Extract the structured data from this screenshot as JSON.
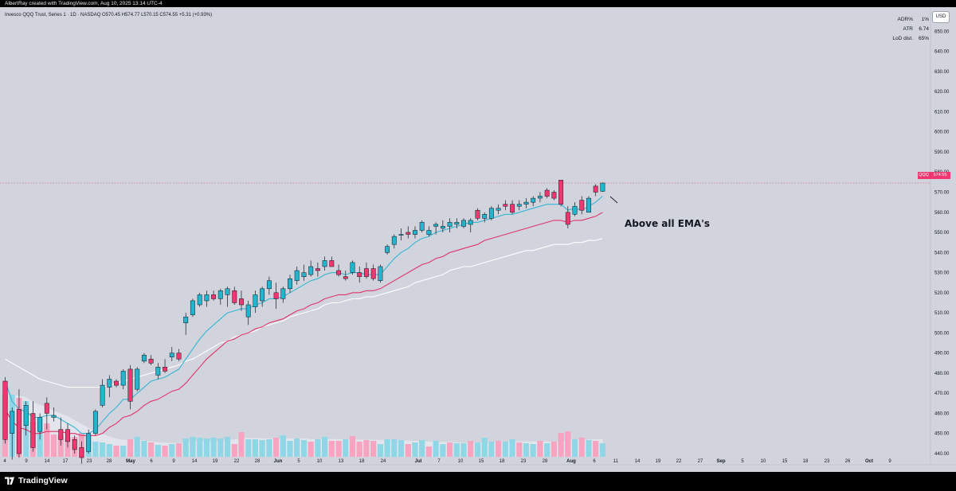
{
  "header": {
    "creator_text": "AlbertRay created with TradingView.com, Aug 10, 2025 13:14 UTC-4"
  },
  "legend": {
    "text": "Invesco QQQ Trust, Series 1 · 1D · NASDAQ  O570.45  H574.77  L570.15  C574.55  +5.31 (+0.93%)"
  },
  "stats": [
    {
      "label": "ADR%",
      "value": "1%"
    },
    {
      "label": "ATR",
      "value": "6.74"
    },
    {
      "label": "LoD dist.",
      "value": "65%"
    }
  ],
  "currency_button": "USD",
  "price_tag": {
    "symbol": "QQQ",
    "price": "574.55"
  },
  "annotation": "Above all EMA's",
  "footer": {
    "brand": "TradingView"
  },
  "colors": {
    "up": "#22b5cd",
    "down": "#f23670",
    "volume_up": "#8fd6e6",
    "volume_down": "#f6a4bf",
    "ema_fast": "#35b6d4",
    "ema_mid": "#e2336a",
    "ema_slow": "#ffffff",
    "background": "#d1d4dc"
  },
  "chart_data": {
    "type": "candlestick",
    "title": "Invesco QQQ Trust, Series 1",
    "interval": "1D",
    "exchange": "NASDAQ",
    "y_axis": {
      "ticks": [
        440,
        450,
        460,
        470,
        480,
        490,
        500,
        510,
        520,
        530,
        540,
        550,
        560,
        570,
        580,
        590,
        600,
        610,
        620,
        630,
        640,
        650
      ],
      "ylim": [
        436,
        654
      ]
    },
    "x_axis": {
      "ticks": [
        "4",
        "9",
        "14",
        "17",
        "23",
        "28",
        "May",
        "6",
        "9",
        "14",
        "19",
        "22",
        "28",
        "Jun",
        "5",
        "10",
        "13",
        "18",
        "24",
        "Jul",
        "7",
        "10",
        "15",
        "18",
        "23",
        "28",
        "Aug",
        "6",
        "11",
        "14",
        "19",
        "22",
        "27",
        "Sep",
        "5",
        "10",
        "15",
        "18",
        "23",
        "26",
        "Oct",
        "9"
      ]
    },
    "candles": [
      {
        "o": 476,
        "h": 478,
        "l": 445,
        "c": 447
      },
      {
        "o": 450,
        "h": 463,
        "l": 437,
        "c": 461
      },
      {
        "o": 462,
        "h": 472,
        "l": 438,
        "c": 440
      },
      {
        "o": 454,
        "h": 466,
        "l": 449,
        "c": 464
      },
      {
        "o": 460,
        "h": 466,
        "l": 441,
        "c": 443
      },
      {
        "o": 451,
        "h": 460,
        "l": 447,
        "c": 458
      },
      {
        "o": 465,
        "h": 468,
        "l": 452,
        "c": 460
      },
      {
        "o": 458,
        "h": 463,
        "l": 456,
        "c": 459
      },
      {
        "o": 452,
        "h": 458,
        "l": 444,
        "c": 447
      },
      {
        "o": 452,
        "h": 455,
        "l": 443,
        "c": 446
      },
      {
        "o": 447,
        "h": 449,
        "l": 440,
        "c": 442
      },
      {
        "o": 443,
        "h": 446,
        "l": 435,
        "c": 438
      },
      {
        "o": 441,
        "h": 452,
        "l": 440,
        "c": 450
      },
      {
        "o": 450,
        "h": 462,
        "l": 449,
        "c": 461
      },
      {
        "o": 464,
        "h": 477,
        "l": 463,
        "c": 474
      },
      {
        "o": 473,
        "h": 479,
        "l": 468,
        "c": 477
      },
      {
        "o": 476,
        "h": 477,
        "l": 473,
        "c": 474
      },
      {
        "o": 474,
        "h": 482,
        "l": 472,
        "c": 481
      },
      {
        "o": 482,
        "h": 484,
        "l": 462,
        "c": 466
      },
      {
        "o": 472,
        "h": 483,
        "l": 471,
        "c": 482
      },
      {
        "o": 486,
        "h": 490,
        "l": 485,
        "c": 489
      },
      {
        "o": 487,
        "h": 489,
        "l": 484,
        "c": 485
      },
      {
        "o": 479,
        "h": 485,
        "l": 477,
        "c": 483
      },
      {
        "o": 483,
        "h": 487,
        "l": 480,
        "c": 481
      },
      {
        "o": 488,
        "h": 493,
        "l": 486,
        "c": 490
      },
      {
        "o": 490,
        "h": 492,
        "l": 486,
        "c": 487
      },
      {
        "o": 505,
        "h": 510,
        "l": 499,
        "c": 508
      },
      {
        "o": 509,
        "h": 517,
        "l": 508,
        "c": 516
      },
      {
        "o": 514,
        "h": 520,
        "l": 513,
        "c": 519
      },
      {
        "o": 516,
        "h": 521,
        "l": 513,
        "c": 519
      },
      {
        "o": 519,
        "h": 521,
        "l": 516,
        "c": 517
      },
      {
        "o": 517,
        "h": 522,
        "l": 514,
        "c": 521
      },
      {
        "o": 519,
        "h": 523,
        "l": 513,
        "c": 522
      },
      {
        "o": 521,
        "h": 523,
        "l": 514,
        "c": 515
      },
      {
        "o": 517,
        "h": 521,
        "l": 511,
        "c": 514
      },
      {
        "o": 508,
        "h": 516,
        "l": 504,
        "c": 514
      },
      {
        "o": 513,
        "h": 521,
        "l": 510,
        "c": 519
      },
      {
        "o": 516,
        "h": 523,
        "l": 513,
        "c": 522
      },
      {
        "o": 522,
        "h": 528,
        "l": 519,
        "c": 526
      },
      {
        "o": 520,
        "h": 525,
        "l": 512,
        "c": 517
      },
      {
        "o": 517,
        "h": 523,
        "l": 515,
        "c": 522
      },
      {
        "o": 522,
        "h": 529,
        "l": 520,
        "c": 527
      },
      {
        "o": 526,
        "h": 533,
        "l": 524,
        "c": 531
      },
      {
        "o": 528,
        "h": 534,
        "l": 526,
        "c": 530
      },
      {
        "o": 529,
        "h": 536,
        "l": 528,
        "c": 533
      },
      {
        "o": 532,
        "h": 535,
        "l": 528,
        "c": 531
      },
      {
        "o": 533,
        "h": 538,
        "l": 531,
        "c": 536
      },
      {
        "o": 536,
        "h": 538,
        "l": 533,
        "c": 533
      },
      {
        "o": 531,
        "h": 534,
        "l": 528,
        "c": 529
      },
      {
        "o": 528,
        "h": 531,
        "l": 526,
        "c": 527
      },
      {
        "o": 530,
        "h": 536,
        "l": 529,
        "c": 535
      },
      {
        "o": 530,
        "h": 533,
        "l": 525,
        "c": 528
      },
      {
        "o": 532,
        "h": 535,
        "l": 527,
        "c": 528
      },
      {
        "o": 532,
        "h": 534,
        "l": 526,
        "c": 527
      },
      {
        "o": 526,
        "h": 534,
        "l": 525,
        "c": 533
      },
      {
        "o": 540,
        "h": 544,
        "l": 539,
        "c": 543
      },
      {
        "o": 544,
        "h": 549,
        "l": 542,
        "c": 548
      },
      {
        "o": 549,
        "h": 552,
        "l": 546,
        "c": 549
      },
      {
        "o": 550,
        "h": 553,
        "l": 547,
        "c": 549
      },
      {
        "o": 549,
        "h": 553,
        "l": 547,
        "c": 551
      },
      {
        "o": 551,
        "h": 556,
        "l": 550,
        "c": 555
      },
      {
        "o": 549,
        "h": 553,
        "l": 548,
        "c": 551
      },
      {
        "o": 553,
        "h": 555,
        "l": 549,
        "c": 554
      },
      {
        "o": 552,
        "h": 556,
        "l": 550,
        "c": 553
      },
      {
        "o": 553,
        "h": 557,
        "l": 550,
        "c": 555
      },
      {
        "o": 554,
        "h": 557,
        "l": 552,
        "c": 555
      },
      {
        "o": 553,
        "h": 557,
        "l": 552,
        "c": 556
      },
      {
        "o": 554,
        "h": 557,
        "l": 550,
        "c": 556
      },
      {
        "o": 561,
        "h": 562,
        "l": 556,
        "c": 557
      },
      {
        "o": 557,
        "h": 560,
        "l": 555,
        "c": 559
      },
      {
        "o": 557,
        "h": 563,
        "l": 556,
        "c": 562
      },
      {
        "o": 561,
        "h": 564,
        "l": 559,
        "c": 562
      },
      {
        "o": 564,
        "h": 566,
        "l": 561,
        "c": 563
      },
      {
        "o": 564,
        "h": 566,
        "l": 559,
        "c": 560
      },
      {
        "o": 563,
        "h": 566,
        "l": 561,
        "c": 564
      },
      {
        "o": 564,
        "h": 567,
        "l": 562,
        "c": 565
      },
      {
        "o": 565,
        "h": 568,
        "l": 563,
        "c": 567
      },
      {
        "o": 567,
        "h": 570,
        "l": 565,
        "c": 568
      },
      {
        "o": 571,
        "h": 572,
        "l": 567,
        "c": 568
      },
      {
        "o": 570,
        "h": 571,
        "l": 566,
        "c": 567
      },
      {
        "o": 576,
        "h": 576,
        "l": 563,
        "c": 564
      },
      {
        "o": 560,
        "h": 563,
        "l": 552,
        "c": 554
      },
      {
        "o": 559,
        "h": 565,
        "l": 558,
        "c": 563
      },
      {
        "o": 566,
        "h": 568,
        "l": 559,
        "c": 561
      },
      {
        "o": 560,
        "h": 568,
        "l": 560,
        "c": 567
      },
      {
        "o": 573,
        "h": 574,
        "l": 568,
        "c": 570
      },
      {
        "o": 570.45,
        "h": 574.77,
        "l": 570.15,
        "c": 574.55
      }
    ],
    "volume": [
      {
        "v": 78,
        "up": false
      },
      {
        "v": 78,
        "up": true
      },
      {
        "v": 74,
        "up": false
      },
      {
        "v": 70,
        "up": true
      },
      {
        "v": 44,
        "up": false
      },
      {
        "v": 48,
        "up": true
      },
      {
        "v": 42,
        "up": false
      },
      {
        "v": 28,
        "up": false
      },
      {
        "v": 27,
        "up": false
      },
      {
        "v": 24,
        "up": false
      },
      {
        "v": 25,
        "up": false
      },
      {
        "v": 30,
        "up": false
      },
      {
        "v": 27,
        "up": true
      },
      {
        "v": 19,
        "up": true
      },
      {
        "v": 18,
        "up": true
      },
      {
        "v": 16,
        "up": true
      },
      {
        "v": 14,
        "up": false
      },
      {
        "v": 14,
        "up": true
      },
      {
        "v": 22,
        "up": false
      },
      {
        "v": 25,
        "up": true
      },
      {
        "v": 20,
        "up": true
      },
      {
        "v": 18,
        "up": false
      },
      {
        "v": 15,
        "up": true
      },
      {
        "v": 14,
        "up": false
      },
      {
        "v": 16,
        "up": true
      },
      {
        "v": 17,
        "up": false
      },
      {
        "v": 23,
        "up": true
      },
      {
        "v": 25,
        "up": true
      },
      {
        "v": 24,
        "up": true
      },
      {
        "v": 23,
        "up": true
      },
      {
        "v": 24,
        "up": true
      },
      {
        "v": 23,
        "up": true
      },
      {
        "v": 25,
        "up": true
      },
      {
        "v": 16,
        "up": false
      },
      {
        "v": 31,
        "up": false
      },
      {
        "v": 22,
        "up": true
      },
      {
        "v": 22,
        "up": true
      },
      {
        "v": 21,
        "up": true
      },
      {
        "v": 22,
        "up": true
      },
      {
        "v": 24,
        "up": false
      },
      {
        "v": 27,
        "up": true
      },
      {
        "v": 20,
        "up": true
      },
      {
        "v": 23,
        "up": true
      },
      {
        "v": 21,
        "up": true
      },
      {
        "v": 19,
        "up": false
      },
      {
        "v": 22,
        "up": true
      },
      {
        "v": 25,
        "up": true
      },
      {
        "v": 20,
        "up": false
      },
      {
        "v": 20,
        "up": false
      },
      {
        "v": 22,
        "up": true
      },
      {
        "v": 26,
        "up": false
      },
      {
        "v": 19,
        "up": false
      },
      {
        "v": 21,
        "up": false
      },
      {
        "v": 20,
        "up": false
      },
      {
        "v": 16,
        "up": true
      },
      {
        "v": 22,
        "up": true
      },
      {
        "v": 22,
        "up": true
      },
      {
        "v": 21,
        "up": true
      },
      {
        "v": 16,
        "up": false
      },
      {
        "v": 18,
        "up": true
      },
      {
        "v": 21,
        "up": true
      },
      {
        "v": 13,
        "up": false
      },
      {
        "v": 20,
        "up": true
      },
      {
        "v": 16,
        "up": true
      },
      {
        "v": 18,
        "up": false
      },
      {
        "v": 17,
        "up": true
      },
      {
        "v": 17,
        "up": true
      },
      {
        "v": 20,
        "up": false
      },
      {
        "v": 18,
        "up": true
      },
      {
        "v": 24,
        "up": true
      },
      {
        "v": 19,
        "up": true
      },
      {
        "v": 20,
        "up": false
      },
      {
        "v": 19,
        "up": true
      },
      {
        "v": 22,
        "up": true
      },
      {
        "v": 18,
        "up": false
      },
      {
        "v": 17,
        "up": true
      },
      {
        "v": 16,
        "up": true
      },
      {
        "v": 20,
        "up": false
      },
      {
        "v": 17,
        "up": true
      },
      {
        "v": 19,
        "up": false
      },
      {
        "v": 30,
        "up": false
      },
      {
        "v": 32,
        "up": false
      },
      {
        "v": 22,
        "up": true
      },
      {
        "v": 24,
        "up": false
      },
      {
        "v": 21,
        "up": true
      },
      {
        "v": 20,
        "up": false
      },
      {
        "v": 17,
        "up": true
      }
    ],
    "ema_fast": [
      476,
      466,
      462,
      461,
      458,
      458,
      459,
      459,
      457,
      455,
      453,
      450,
      450,
      452,
      456,
      460,
      463,
      467,
      467,
      470,
      473,
      476,
      477,
      478,
      480,
      482,
      487,
      492,
      497,
      501,
      504,
      507,
      510,
      511,
      512,
      512,
      514,
      515,
      517,
      517,
      518,
      520,
      522,
      524,
      526,
      527,
      529,
      530,
      530,
      529,
      530,
      530,
      529,
      529,
      529,
      533,
      537,
      540,
      542,
      545,
      547,
      548,
      550,
      551,
      552,
      553,
      554,
      555,
      555,
      556,
      557,
      558,
      559,
      559,
      560,
      561,
      562,
      563,
      564,
      564,
      564,
      561,
      562,
      561,
      563,
      565,
      568
    ],
    "ema_mid": [
      462,
      456,
      453,
      452,
      450,
      450,
      451,
      451,
      451,
      450,
      450,
      449,
      449,
      449,
      450,
      453,
      455,
      458,
      459,
      461,
      464,
      466,
      467,
      469,
      471,
      472,
      475,
      479,
      483,
      487,
      490,
      493,
      496,
      497,
      499,
      500,
      502,
      503,
      505,
      506,
      507,
      509,
      511,
      512,
      514,
      515,
      517,
      518,
      519,
      519,
      520,
      520,
      521,
      521,
      522,
      524,
      526,
      528,
      530,
      532,
      534,
      535,
      537,
      538,
      540,
      541,
      542,
      543,
      544,
      546,
      547,
      548,
      549,
      550,
      551,
      552,
      553,
      554,
      555,
      556,
      556,
      555,
      556,
      556,
      557,
      558,
      560
    ],
    "ema_slow": [
      487,
      485,
      483,
      481,
      479,
      477,
      476,
      475,
      474,
      473,
      473,
      473,
      473,
      473,
      473,
      474,
      475,
      476,
      477,
      478,
      479,
      480,
      481,
      482,
      483,
      484,
      486,
      487,
      489,
      491,
      493,
      495,
      496,
      498,
      499,
      500,
      501,
      503,
      504,
      505,
      506,
      508,
      509,
      510,
      511,
      512,
      514,
      515,
      515,
      516,
      517,
      517,
      518,
      518,
      519,
      520,
      521,
      522,
      523,
      525,
      526,
      527,
      528,
      529,
      531,
      532,
      533,
      533,
      534,
      535,
      536,
      537,
      538,
      539,
      540,
      541,
      541,
      542,
      543,
      544,
      544,
      544,
      545,
      545,
      546,
      546,
      547
    ]
  }
}
